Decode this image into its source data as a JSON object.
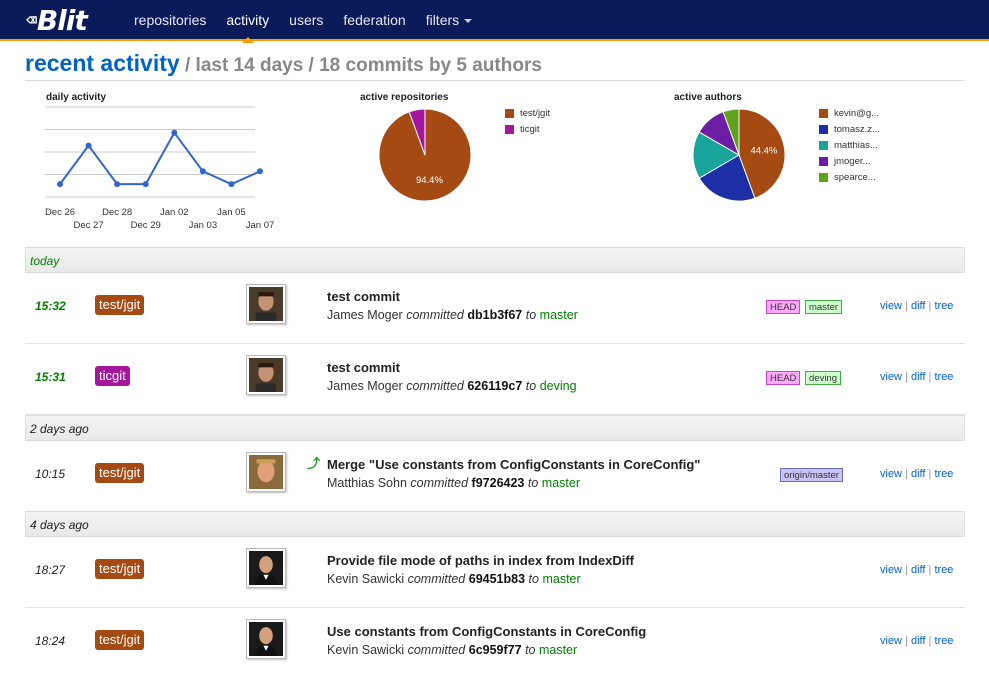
{
  "app": {
    "logo_glyph": "⌫",
    "logo_text": "Blit"
  },
  "nav": {
    "items": [
      {
        "label": "repositories"
      },
      {
        "label": "activity"
      },
      {
        "label": "users"
      },
      {
        "label": "federation"
      },
      {
        "label": "filters"
      }
    ]
  },
  "header": {
    "title": "recent activity",
    "subtitle": " / last 14 days / 18 commits by 5 authors"
  },
  "chart_data": [
    {
      "type": "line",
      "title": "daily activity",
      "categories": [
        "Dec 26",
        "Dec 27",
        "Dec 28",
        "Dec 29",
        "Jan 02",
        "Jan 03",
        "Jan 05",
        "Jan 07"
      ],
      "values": [
        1,
        4,
        1,
        1,
        5,
        2,
        1,
        2
      ],
      "ylim": [
        0,
        7
      ],
      "color": "#3366cc",
      "grid": true
    },
    {
      "type": "pie",
      "title": "active repositories",
      "labels": [
        "test/jgit",
        "ticgit"
      ],
      "values": [
        94.4,
        5.6
      ],
      "colors": [
        "#a54a13",
        "#a4179c"
      ],
      "slice_label": "94.4%"
    },
    {
      "type": "pie",
      "title": "active authors",
      "labels": [
        "kevin@g...",
        "tomasz.z...",
        "matthias...",
        "jmoger...",
        "spearce..."
      ],
      "values": [
        44.4,
        22.2,
        16.7,
        11.1,
        5.6
      ],
      "colors": [
        "#a54a13",
        "#1c2fa6",
        "#1aa59c",
        "#6c1ea5",
        "#5fa31c"
      ],
      "slice_label": "44.4%"
    }
  ],
  "days": [
    {
      "label": "today"
    },
    {
      "label": "2 days ago"
    },
    {
      "label": "4 days ago"
    }
  ],
  "commits": [
    {
      "time": "15:32",
      "repo": "test/jgit",
      "repo_color": "#a54a13",
      "message": "test commit",
      "author": "James Moger",
      "verb": "committed",
      "hash": "db1b3f67",
      "to": "to",
      "branch": "master",
      "refs": [
        {
          "label": "HEAD",
          "kind": "head"
        },
        {
          "label": "master",
          "kind": "master"
        }
      ],
      "avatar": "avatar-james"
    },
    {
      "time": "15:31",
      "repo": "ticgit",
      "repo_color": "#a4179c",
      "message": "test commit",
      "author": "James Moger",
      "verb": "committed",
      "hash": "626119c7",
      "to": "to",
      "branch": "deving",
      "refs": [
        {
          "label": "HEAD",
          "kind": "head"
        },
        {
          "label": "deving",
          "kind": "master"
        }
      ],
      "avatar": "avatar-james"
    },
    {
      "time": "10:15",
      "repo": "test/jgit",
      "repo_color": "#a54a13",
      "message": "Merge \"Use constants from ConfigConstants in CoreConfig\"",
      "author": "Matthias Sohn",
      "verb": "committed",
      "hash": "f9726423",
      "to": "to",
      "branch": "master",
      "refs": [
        {
          "label": "origin/master",
          "kind": "remote"
        }
      ],
      "avatar": "avatar-matthias"
    },
    {
      "time": "18:27",
      "repo": "test/jgit",
      "repo_color": "#a54a13",
      "message": "Provide file mode of paths in index from IndexDiff",
      "author": "Kevin Sawicki",
      "verb": "committed",
      "hash": "69451b83",
      "to": "to",
      "branch": "master",
      "refs": [],
      "avatar": "avatar-kevin"
    },
    {
      "time": "18:24",
      "repo": "test/jgit",
      "repo_color": "#a54a13",
      "message": "Use constants from ConfigConstants in CoreConfig",
      "author": "Kevin Sawicki",
      "verb": "committed",
      "hash": "6c959f77",
      "to": "to",
      "branch": "master",
      "refs": [],
      "avatar": "avatar-kevin"
    }
  ],
  "row_links": {
    "view": "view",
    "diff": "diff",
    "tree": "tree",
    "sep": " | "
  }
}
